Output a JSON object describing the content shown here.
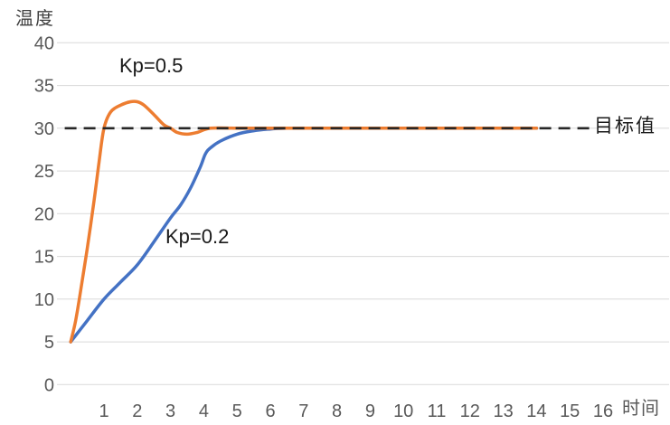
{
  "chart_data": {
    "type": "line",
    "title": "",
    "xlabel": "时间",
    "ylabel": "温度",
    "x_ticks": [
      1,
      2,
      3,
      4,
      5,
      6,
      7,
      8,
      9,
      10,
      11,
      12,
      13,
      14,
      15,
      16
    ],
    "y_ticks": [
      0,
      5,
      10,
      15,
      20,
      25,
      30,
      35,
      40
    ],
    "xlim": [
      0,
      17
    ],
    "ylim": [
      0,
      40
    ],
    "grid": "horizontal-only",
    "legend_position": "none (inline text annotations)",
    "colors": {
      "kp05_line": "#ED7D31",
      "kp02_line": "#4472C4",
      "target_line": "#262626",
      "gridline": "#D9D9D9",
      "tick_label": "#595959"
    },
    "target_line": {
      "label": "目标值",
      "value": 30,
      "style": "dashed",
      "x_start": -0.18,
      "x_end": 15.62
    },
    "series": [
      {
        "name": "Kp=0.5",
        "color": "#ED7D31",
        "points": [
          [
            0,
            5
          ],
          [
            0.15,
            7.5
          ],
          [
            0.3,
            11
          ],
          [
            0.5,
            16
          ],
          [
            0.7,
            21.5
          ],
          [
            0.85,
            26
          ],
          [
            1,
            30
          ],
          [
            1.2,
            31.9
          ],
          [
            1.5,
            32.7
          ],
          [
            1.8,
            33.1
          ],
          [
            2,
            33.1
          ],
          [
            2.2,
            32.7
          ],
          [
            2.5,
            31.6
          ],
          [
            2.8,
            30.4
          ],
          [
            3,
            30
          ],
          [
            3.2,
            29.5
          ],
          [
            3.5,
            29.3
          ],
          [
            3.8,
            29.5
          ],
          [
            4.2,
            30
          ],
          [
            5,
            30
          ],
          [
            6,
            30
          ],
          [
            7,
            30
          ],
          [
            8,
            30
          ],
          [
            9,
            30
          ],
          [
            10,
            30
          ],
          [
            11,
            30
          ],
          [
            12,
            30
          ],
          [
            13,
            30
          ],
          [
            14,
            30
          ]
        ]
      },
      {
        "name": "Kp=0.2",
        "color": "#4472C4",
        "points": [
          [
            0,
            5
          ],
          [
            0.5,
            7.5
          ],
          [
            1,
            10
          ],
          [
            1.5,
            12
          ],
          [
            2,
            14
          ],
          [
            2.5,
            16.7
          ],
          [
            3,
            19.5
          ],
          [
            3.3,
            21
          ],
          [
            3.6,
            23
          ],
          [
            3.9,
            25.5
          ],
          [
            4.05,
            27
          ],
          [
            4.2,
            27.7
          ],
          [
            4.5,
            28.5
          ],
          [
            5,
            29.3
          ],
          [
            5.5,
            29.7
          ],
          [
            6,
            29.9
          ],
          [
            6.5,
            30
          ],
          [
            7,
            30
          ],
          [
            8,
            30
          ],
          [
            9,
            30
          ],
          [
            10,
            30
          ],
          [
            11,
            30
          ],
          [
            12,
            30
          ],
          [
            13,
            30
          ],
          [
            14,
            30
          ]
        ]
      }
    ],
    "annotations": [
      {
        "text": "Kp=0.5",
        "near": [
          2.45,
          36.3
        ]
      },
      {
        "text": "Kp=0.2",
        "near": [
          3.85,
          16.2
        ]
      },
      {
        "text": "目标值",
        "near": [
          15.75,
          30
        ]
      }
    ]
  },
  "labels": {
    "y_axis_title": "温度",
    "x_axis_title": "时间",
    "kp05": "Kp=0.5",
    "kp02": "Kp=0.2",
    "target": "目标值"
  }
}
